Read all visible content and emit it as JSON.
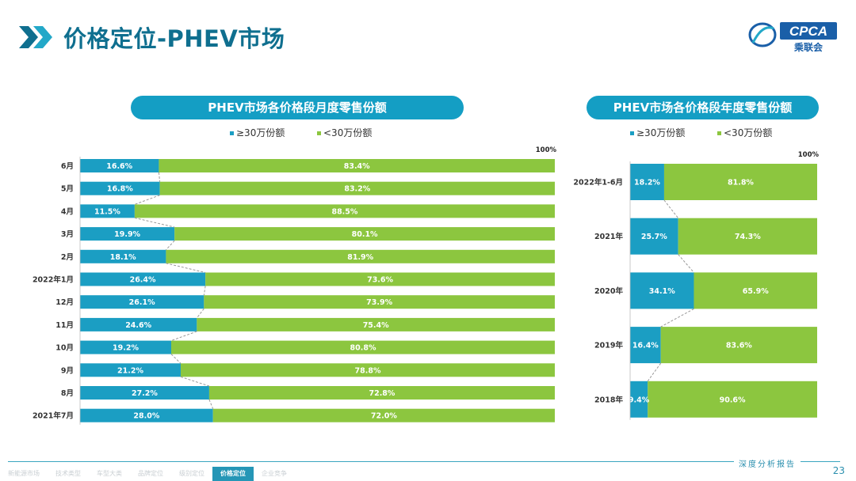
{
  "header": {
    "title": "价格定位-PHEV市场",
    "logo_text": "CPCA",
    "logo_subtext": "乘联会"
  },
  "footer": {
    "report_tag": "深度分析报告",
    "page_number": "23",
    "nav_items": [
      {
        "label": "新能源市场",
        "active": false
      },
      {
        "label": "技术类型",
        "active": false
      },
      {
        "label": "车型大类",
        "active": false
      },
      {
        "label": "品牌定位",
        "active": false
      },
      {
        "label": "级别定位",
        "active": false
      },
      {
        "label": "价格定位",
        "active": true
      },
      {
        "label": "企业竞争",
        "active": false
      }
    ]
  },
  "colors": {
    "high": "#1b9ec3",
    "low": "#8cc63f",
    "title_pill": "#149ec4"
  },
  "chart_data": [
    {
      "type": "bar",
      "stacked": true,
      "orientation": "horizontal",
      "title": "PHEV市场各价格段月度零售份额",
      "top_label": "100%",
      "categories": [
        "6月",
        "5月",
        "4月",
        "3月",
        "2月",
        "2022年1月",
        "12月",
        "11月",
        "10月",
        "9月",
        "8月",
        "2021年7月"
      ],
      "series": [
        {
          "name": "≥30万份额",
          "values": [
            16.6,
            16.8,
            11.5,
            19.9,
            18.1,
            26.4,
            26.1,
            24.6,
            19.2,
            21.2,
            27.2,
            28.0
          ]
        },
        {
          "name": "<30万份额",
          "values": [
            83.4,
            83.2,
            88.5,
            80.1,
            81.9,
            73.6,
            73.9,
            75.4,
            80.8,
            78.8,
            72.8,
            72.0
          ]
        }
      ],
      "xlim": [
        0,
        100
      ],
      "legend_position": "top-center"
    },
    {
      "type": "bar",
      "stacked": true,
      "orientation": "horizontal",
      "title": "PHEV市场各价格段年度零售份额",
      "top_label": "100%",
      "categories": [
        "2022年1-6月",
        "2021年",
        "2020年",
        "2019年",
        "2018年"
      ],
      "series": [
        {
          "name": "≥30万份额",
          "values": [
            18.2,
            25.7,
            34.1,
            16.4,
            9.4
          ]
        },
        {
          "name": "<30万份额",
          "values": [
            81.8,
            74.3,
            65.9,
            83.6,
            90.6
          ]
        }
      ],
      "xlim": [
        0,
        100
      ],
      "legend_position": "top-center"
    }
  ]
}
